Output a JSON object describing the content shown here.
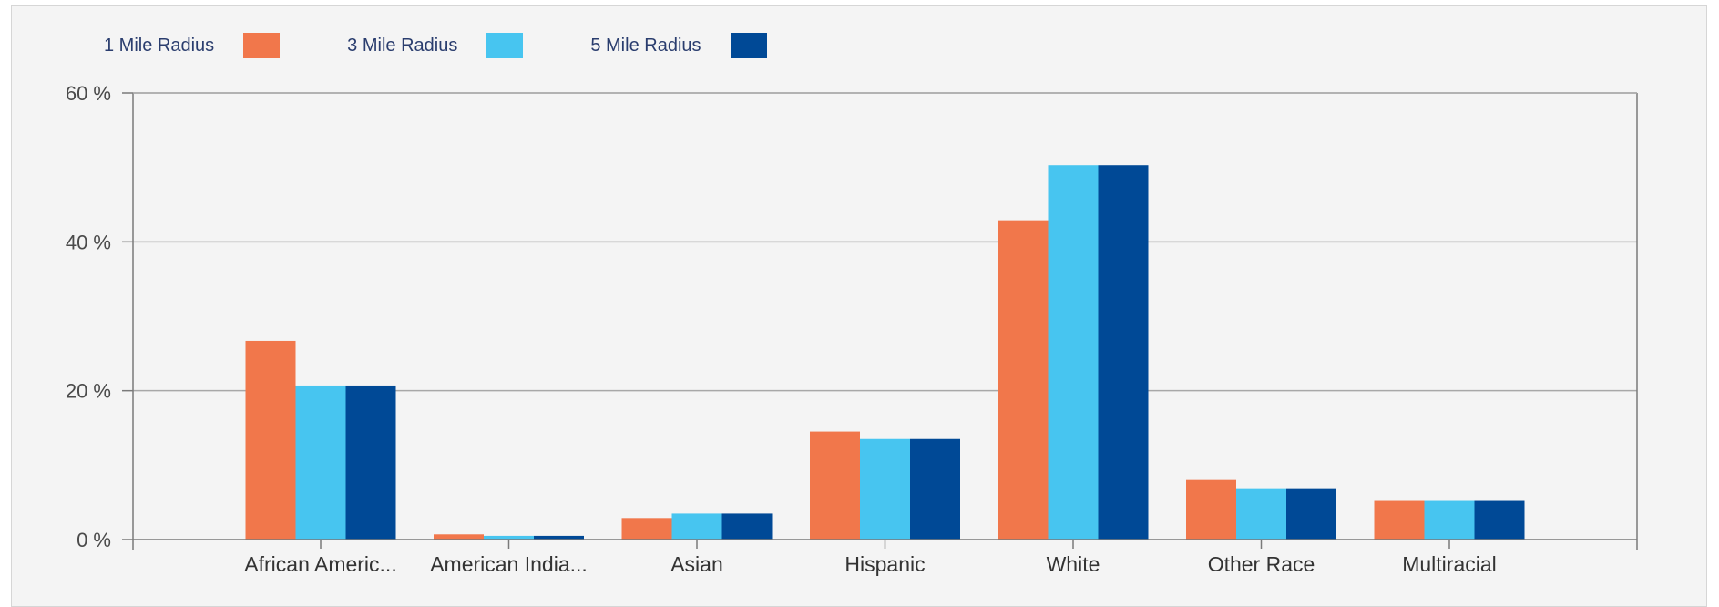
{
  "chart_data": {
    "type": "bar",
    "title": "",
    "xlabel": "",
    "ylabel": "",
    "categories": [
      "African Americ...",
      "American India...",
      "Asian",
      "Hispanic",
      "White",
      "Other Race",
      "Multiracial"
    ],
    "series": [
      {
        "name": "1 Mile Radius",
        "color": "#f1774b",
        "values": [
          26.7,
          0.7,
          2.9,
          14.5,
          42.9,
          8.0,
          5.2
        ]
      },
      {
        "name": "3 Mile Radius",
        "color": "#47c5f0",
        "values": [
          20.7,
          0.5,
          3.5,
          13.5,
          50.3,
          6.9,
          5.2
        ]
      },
      {
        "name": "5 Mile Radius",
        "color": "#004996",
        "values": [
          20.7,
          0.5,
          3.5,
          13.5,
          50.3,
          6.9,
          5.2
        ]
      }
    ],
    "ylim": [
      0,
      60
    ],
    "yticks": [
      0,
      20,
      40,
      60
    ],
    "ytick_labels": [
      "0 %",
      "20 %",
      "40 %",
      "60 %"
    ],
    "grid": true,
    "legend_position": "top-left"
  }
}
